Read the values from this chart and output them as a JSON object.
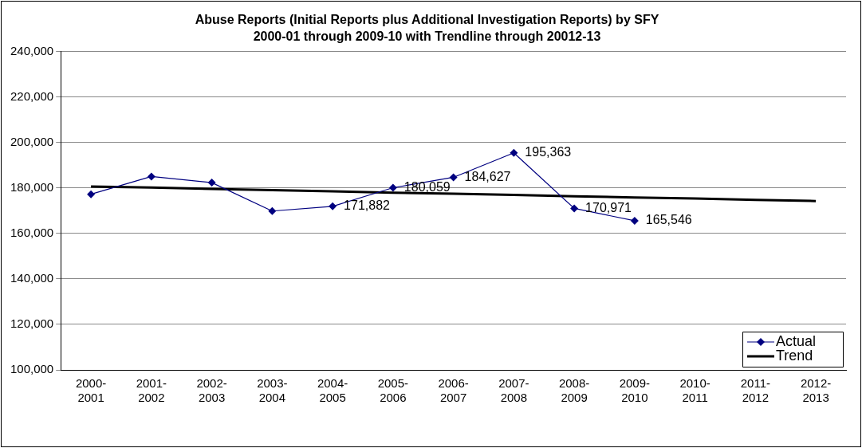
{
  "chart_data": {
    "type": "line",
    "title": "Abuse Reports (Initial Reports plus Additional Investigation Reports) by SFY",
    "subtitle": "2000-01 through 2009-10 with Trendline through 20012-13",
    "categories": [
      "2000-2001",
      "2001-2002",
      "2002-2003",
      "2003-2004",
      "2004-2005",
      "2005-2006",
      "2006-2007",
      "2007-2008",
      "2008-2009",
      "2009-2010",
      "2010-2011",
      "2011-2012",
      "2012-2013"
    ],
    "series": [
      {
        "name": "Actual",
        "color": "#000080",
        "marker": "diamond",
        "values": [
          177200,
          185000,
          182300,
          169800,
          171882,
          180059,
          184627,
          195363,
          170971,
          165546,
          null,
          null,
          null
        ],
        "value_labels": [
          null,
          null,
          null,
          null,
          "171,882",
          "180,059",
          "184,627",
          "195,363",
          "170,971",
          "165,546",
          null,
          null,
          null
        ]
      },
      {
        "name": "Trend",
        "type": "line",
        "color": "#000000",
        "marker": "none",
        "values": [
          180600,
          180100,
          179500,
          179000,
          178500,
          177900,
          177400,
          176900,
          176300,
          175800,
          175300,
          174700,
          174200
        ]
      }
    ],
    "ylim": [
      100000,
      240000
    ],
    "yticks": [
      {
        "value": 100000,
        "label": "100,000"
      },
      {
        "value": 120000,
        "label": "120,000"
      },
      {
        "value": 140000,
        "label": "140,000"
      },
      {
        "value": 160000,
        "label": "160,000"
      },
      {
        "value": 180000,
        "label": "180,000"
      },
      {
        "value": 200000,
        "label": "200,000"
      },
      {
        "value": 220000,
        "label": "220,000"
      },
      {
        "value": 240000,
        "label": "240,000"
      }
    ],
    "grid": "y",
    "legend": "bottom right"
  }
}
